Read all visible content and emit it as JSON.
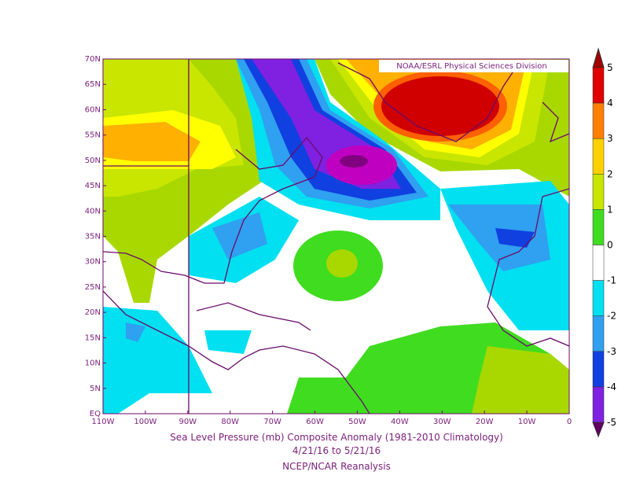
{
  "credit": "NOAA/ESRL Physical Sciences Division",
  "lat_labels": [
    "70N",
    "65N",
    "60N",
    "55N",
    "50N",
    "45N",
    "40N",
    "35N",
    "30N",
    "25N",
    "20N",
    "15N",
    "10N",
    "5N",
    "EQ"
  ],
  "lon_labels": [
    "110W",
    "100W",
    "90W",
    "80W",
    "70W",
    "60W",
    "50W",
    "40W",
    "30W",
    "20W",
    "10W",
    "0"
  ],
  "colorbar": {
    "labels": [
      "5",
      "4",
      "3",
      "2",
      "1",
      "0",
      "-1",
      "-2",
      "-3",
      "-4",
      "-5"
    ]
  },
  "caption": {
    "line1": "Sea Level Pressure (mb) Composite Anomaly (1981-2010 Climatology)",
    "line2": "4/21/16  to 5/21/16",
    "line3": "NCEP/NCAR Reanalysis"
  }
}
